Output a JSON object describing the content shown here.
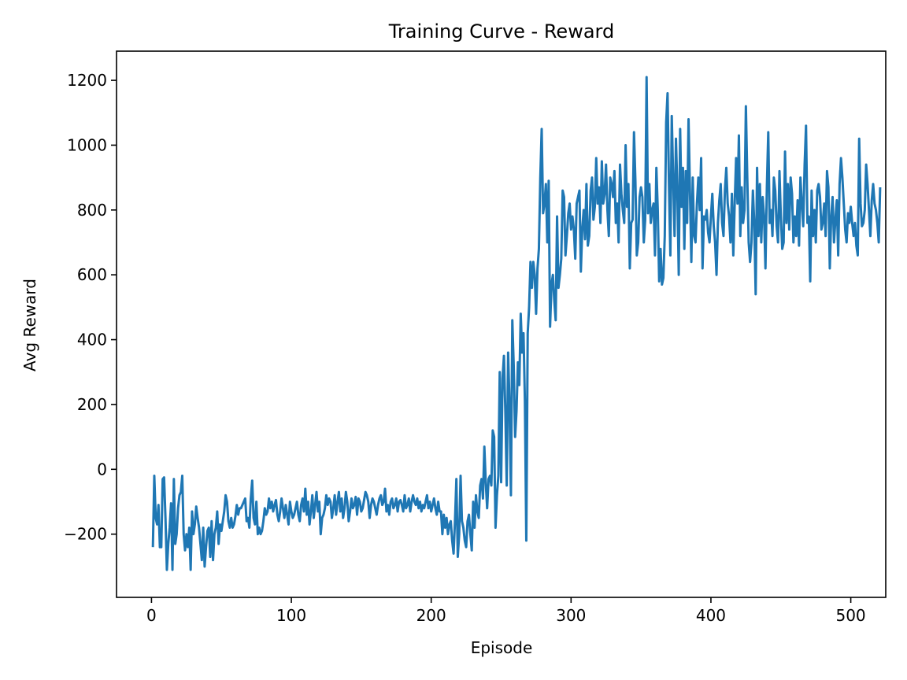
{
  "chart_data": {
    "type": "line",
    "title": "Training Curve - Reward",
    "xlabel": "Episode",
    "ylabel": "Avg Reward",
    "xlim": [
      -25,
      525
    ],
    "ylim": [
      -395,
      1290
    ],
    "x_ticks": [
      0,
      100,
      200,
      300,
      400,
      500
    ],
    "y_ticks": [
      -200,
      0,
      200,
      400,
      600,
      800,
      1000,
      1200
    ],
    "x_tick_labels": [
      "0",
      "100",
      "200",
      "300",
      "400",
      "500"
    ],
    "y_tick_labels": [
      "−200",
      "0",
      "200",
      "400",
      "600",
      "800",
      "1000",
      "1200"
    ],
    "grid": false,
    "series": [
      {
        "color": "#1f77b4",
        "x_start": 1,
        "x_step": 1,
        "values": [
          -240,
          -20,
          -150,
          -170,
          -110,
          -240,
          -240,
          -30,
          -25,
          -150,
          -310,
          -230,
          -180,
          -105,
          -310,
          -30,
          -230,
          -200,
          -120,
          -80,
          -70,
          -20,
          -200,
          -250,
          -200,
          -240,
          -180,
          -310,
          -130,
          -200,
          -170,
          -115,
          -150,
          -180,
          -230,
          -280,
          -180,
          -300,
          -240,
          -190,
          -180,
          -270,
          -160,
          -280,
          -200,
          -180,
          -130,
          -230,
          -170,
          -190,
          -160,
          -130,
          -80,
          -100,
          -160,
          -180,
          -150,
          -180,
          -170,
          -145,
          -110,
          -140,
          -120,
          -120,
          -110,
          -100,
          -90,
          -160,
          -150,
          -180,
          -90,
          -35,
          -150,
          -170,
          -100,
          -200,
          -180,
          -200,
          -190,
          -160,
          -120,
          -140,
          -130,
          -90,
          -120,
          -100,
          -130,
          -110,
          -95,
          -140,
          -160,
          -130,
          -90,
          -120,
          -150,
          -110,
          -140,
          -170,
          -100,
          -130,
          -150,
          -140,
          -120,
          -100,
          -140,
          -160,
          -110,
          -90,
          -130,
          -60,
          -140,
          -100,
          -170,
          -130,
          -80,
          -150,
          -110,
          -70,
          -130,
          -100,
          -200,
          -150,
          -140,
          -120,
          -80,
          -110,
          -90,
          -100,
          -150,
          -120,
          -80,
          -140,
          -100,
          -70,
          -130,
          -90,
          -150,
          -120,
          -70,
          -100,
          -160,
          -130,
          -90,
          -120,
          -110,
          -85,
          -140,
          -90,
          -100,
          -130,
          -120,
          -95,
          -70,
          -80,
          -100,
          -150,
          -110,
          -90,
          -100,
          -120,
          -140,
          -110,
          -90,
          -80,
          -110,
          -100,
          -60,
          -130,
          -110,
          -140,
          -100,
          -90,
          -120,
          -110,
          -90,
          -130,
          -100,
          -95,
          -110,
          -130,
          -80,
          -120,
          -110,
          -90,
          -130,
          -100,
          -80,
          -100,
          -110,
          -90,
          -120,
          -100,
          -130,
          -110,
          -120,
          -100,
          -80,
          -120,
          -100,
          -130,
          -110,
          -90,
          -120,
          -140,
          -100,
          -130,
          -130,
          -200,
          -140,
          -180,
          -150,
          -200,
          -170,
          -160,
          -220,
          -260,
          -160,
          -30,
          -270,
          -200,
          -20,
          -160,
          -180,
          -220,
          -240,
          -160,
          -140,
          -200,
          -250,
          -100,
          -180,
          -80,
          -130,
          -150,
          -50,
          -30,
          -90,
          70,
          -40,
          -120,
          -30,
          -20,
          -50,
          120,
          100,
          -180,
          -80,
          -20,
          300,
          -40,
          280,
          350,
          180,
          -50,
          360,
          200,
          -80,
          460,
          320,
          100,
          180,
          330,
          260,
          480,
          360,
          420,
          210,
          -220,
          420,
          500,
          640,
          560,
          640,
          600,
          480,
          620,
          680,
          900,
          1050,
          790,
          820,
          880,
          700,
          890,
          440,
          570,
          600,
          520,
          460,
          780,
          560,
          600,
          650,
          860,
          840,
          660,
          720,
          790,
          820,
          740,
          780,
          740,
          650,
          820,
          840,
          860,
          610,
          740,
          800,
          710,
          880,
          690,
          720,
          860,
          900,
          770,
          810,
          960,
          820,
          870,
          760,
          950,
          820,
          850,
          940,
          800,
          720,
          900,
          880,
          840,
          920,
          760,
          820,
          700,
          940,
          850,
          800,
          760,
          1000,
          810,
          880,
          620,
          760,
          770,
          1040,
          890,
          660,
          700,
          840,
          870,
          840,
          700,
          770,
          1210,
          790,
          880,
          760,
          800,
          820,
          660,
          930,
          800,
          580,
          680,
          570,
          590,
          720,
          1070,
          1160,
          880,
          660,
          1090,
          900,
          720,
          1020,
          860,
          600,
          1050,
          810,
          930,
          680,
          920,
          760,
          1080,
          860,
          640,
          900,
          720,
          700,
          820,
          900,
          800,
          960,
          620,
          780,
          770,
          800,
          730,
          700,
          780,
          850,
          750,
          700,
          600,
          760,
          830,
          880,
          760,
          720,
          860,
          930,
          820,
          780,
          700,
          850,
          660,
          820,
          960,
          820,
          1030,
          720,
          870,
          760,
          800,
          1120,
          900,
          700,
          640,
          700,
          860,
          760,
          540,
          930,
          720,
          880,
          700,
          840,
          780,
          620,
          870,
          1040,
          760,
          800,
          720,
          900,
          860,
          750,
          700,
          920,
          780,
          680,
          700,
          980,
          760,
          880,
          740,
          900,
          850,
          700,
          780,
          720,
          830,
          690,
          900,
          820,
          750,
          940,
          1060,
          760,
          780,
          580,
          860,
          720,
          800,
          700,
          860,
          880,
          840,
          740,
          760,
          820,
          720,
          920,
          870,
          620,
          780,
          840,
          700,
          770,
          830,
          660,
          880,
          960,
          900,
          820,
          740,
          700,
          790,
          760,
          810,
          760,
          720,
          760,
          690,
          660,
          1020,
          820,
          750,
          760,
          800,
          940,
          880,
          800,
          720,
          830,
          880,
          820,
          800,
          760,
          700,
          870
        ]
      }
    ]
  }
}
